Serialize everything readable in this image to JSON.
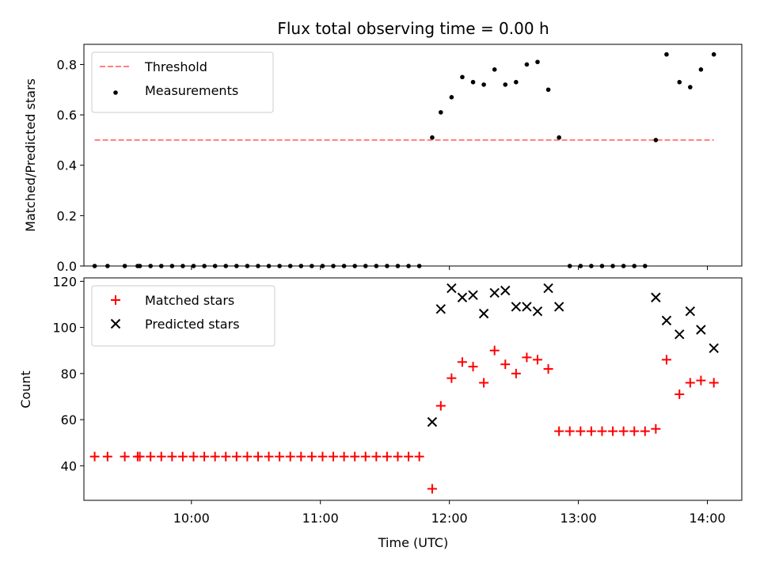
{
  "chart_data": [
    {
      "type": "scatter",
      "title": "Flux total observing time = 0.00 h",
      "xlabel": "",
      "ylabel": "Matched/Predicted stars",
      "xlim": [
        "09:10",
        "14:16"
      ],
      "ylim": [
        0,
        0.88
      ],
      "yticks": [
        0.0,
        0.2,
        0.4,
        0.6,
        0.8
      ],
      "ytick_labels": [
        "0.0",
        "0.2",
        "0.4",
        "0.6",
        "0.8"
      ],
      "xticks": [
        "10:00",
        "11:00",
        "12:00",
        "13:00",
        "14:00"
      ],
      "legend": "top-left",
      "threshold": {
        "name": "Threshold",
        "color": "#ff7f7f",
        "style": "dashed",
        "x": [
          "09:15",
          "14:03"
        ],
        "y": 0.5
      },
      "series": [
        {
          "name": "Measurements",
          "color": "#000000",
          "marker": "dot",
          "x": [
            "09:15",
            "09:21",
            "09:29",
            "09:35",
            "09:36",
            "09:41",
            "09:46",
            "09:51",
            "09:56",
            "10:01",
            "10:06",
            "10:11",
            "10:16",
            "10:21",
            "10:26",
            "10:31",
            "10:36",
            "10:41",
            "10:46",
            "10:51",
            "10:56",
            "11:01",
            "11:06",
            "11:11",
            "11:16",
            "11:21",
            "11:26",
            "11:31",
            "11:36",
            "11:41",
            "11:46",
            "11:52",
            "11:56",
            "12:01",
            "12:06",
            "12:11",
            "12:16",
            "12:21",
            "12:26",
            "12:31",
            "12:36",
            "12:41",
            "12:46",
            "12:51",
            "12:56",
            "13:01",
            "13:06",
            "13:11",
            "13:16",
            "13:21",
            "13:26",
            "13:31",
            "13:36",
            "13:41",
            "13:47",
            "13:52",
            "13:57",
            "14:03"
          ],
          "values": [
            0,
            0,
            0,
            0,
            0,
            0,
            0,
            0,
            0,
            0,
            0,
            0,
            0,
            0,
            0,
            0,
            0,
            0,
            0,
            0,
            0,
            0,
            0,
            0,
            0,
            0,
            0,
            0,
            0,
            0,
            0,
            0.51,
            0.61,
            0.67,
            0.75,
            0.73,
            0.72,
            0.78,
            0.72,
            0.73,
            0.8,
            0.81,
            0.7,
            0.51,
            0,
            0,
            0,
            0,
            0,
            0,
            0,
            0,
            0.5,
            0.84,
            0.73,
            0.71,
            0.78,
            0.84
          ]
        }
      ]
    },
    {
      "type": "scatter",
      "title": "",
      "xlabel": "Time (UTC)",
      "ylabel": "Count",
      "xlim": [
        "09:10",
        "14:16"
      ],
      "ylim": [
        25,
        121.5
      ],
      "yticks": [
        40,
        60,
        80,
        100,
        120
      ],
      "ytick_labels": [
        "40",
        "60",
        "80",
        "100",
        "120"
      ],
      "xticks": [
        "10:00",
        "11:00",
        "12:00",
        "13:00",
        "14:00"
      ],
      "legend": "top-left",
      "series": [
        {
          "name": "Matched stars",
          "color": "#ff0000",
          "marker": "plus",
          "x": [
            "09:15",
            "09:21",
            "09:29",
            "09:35",
            "09:36",
            "09:41",
            "09:46",
            "09:51",
            "09:56",
            "10:01",
            "10:06",
            "10:11",
            "10:16",
            "10:21",
            "10:26",
            "10:31",
            "10:36",
            "10:41",
            "10:46",
            "10:51",
            "10:56",
            "11:01",
            "11:06",
            "11:11",
            "11:16",
            "11:21",
            "11:26",
            "11:31",
            "11:36",
            "11:41",
            "11:46",
            "11:52",
            "11:56",
            "12:01",
            "12:06",
            "12:11",
            "12:16",
            "12:21",
            "12:26",
            "12:31",
            "12:36",
            "12:41",
            "12:46",
            "12:51",
            "12:56",
            "13:01",
            "13:06",
            "13:11",
            "13:16",
            "13:21",
            "13:26",
            "13:31",
            "13:36",
            "13:41",
            "13:47",
            "13:52",
            "13:57",
            "14:03"
          ],
          "values": [
            44,
            44,
            44,
            44,
            44,
            44,
            44,
            44,
            44,
            44,
            44,
            44,
            44,
            44,
            44,
            44,
            44,
            44,
            44,
            44,
            44,
            44,
            44,
            44,
            44,
            44,
            44,
            44,
            44,
            44,
            44,
            30,
            66,
            78,
            85,
            83,
            76,
            90,
            84,
            80,
            87,
            86,
            82,
            55,
            55,
            55,
            55,
            55,
            55,
            55,
            55,
            55,
            56,
            86,
            71,
            76,
            77,
            76
          ]
        },
        {
          "name": "Predicted stars",
          "color": "#000000",
          "marker": "x",
          "x": [
            "11:52",
            "11:56",
            "12:01",
            "12:06",
            "12:11",
            "12:16",
            "12:21",
            "12:26",
            "12:31",
            "12:36",
            "12:41",
            "12:46",
            "12:51",
            "13:36",
            "13:41",
            "13:47",
            "13:52",
            "13:57",
            "14:03"
          ],
          "values": [
            59,
            108,
            117,
            113,
            114,
            106,
            115,
            116,
            109,
            109,
            107,
            117,
            109,
            113,
            103,
            97,
            107,
            99,
            91
          ]
        }
      ]
    }
  ]
}
